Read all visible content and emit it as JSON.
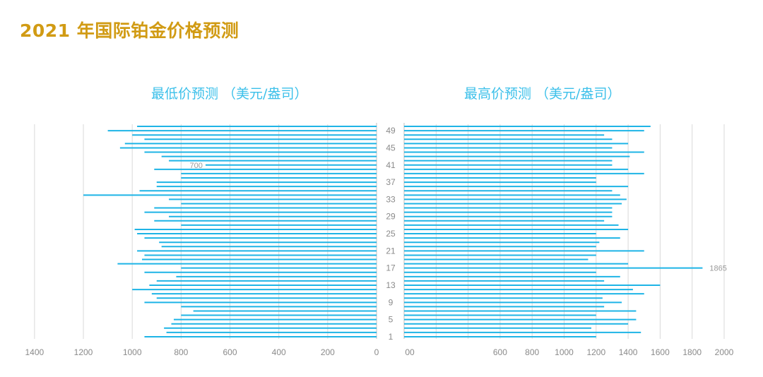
{
  "title": "2021 年国际铂金价格预测",
  "colors": {
    "title": "#d19b14",
    "subtitle": "#3cc0ea",
    "bar": "#1eb4e6",
    "grid": "#d9d9d9",
    "tick": "#8a8a8a"
  },
  "chart_data": [
    {
      "type": "bar",
      "orientation": "horizontal",
      "direction": "right-to-left",
      "title": "最低价预测 （美元/盎司）",
      "categories": [
        1,
        2,
        3,
        4,
        5,
        6,
        7,
        8,
        9,
        10,
        11,
        12,
        13,
        14,
        15,
        16,
        17,
        18,
        19,
        20,
        21,
        22,
        23,
        24,
        25,
        26,
        27,
        28,
        29,
        30,
        31,
        32,
        33,
        34,
        35,
        36,
        37,
        38,
        39,
        40,
        41,
        42,
        43,
        44,
        45,
        46,
        47,
        48,
        49,
        50
      ],
      "category_tick_labels": [
        "1",
        "5",
        "9",
        "13",
        "17",
        "21",
        "25",
        "29",
        "33",
        "37",
        "41",
        "45",
        "49"
      ],
      "values": [
        950,
        860,
        870,
        840,
        830,
        800,
        750,
        800,
        950,
        900,
        920,
        1000,
        930,
        900,
        820,
        950,
        800,
        1060,
        960,
        950,
        980,
        880,
        890,
        950,
        980,
        990,
        800,
        910,
        850,
        950,
        910,
        800,
        850,
        1200,
        970,
        900,
        900,
        800,
        800,
        910,
        700,
        850,
        880,
        950,
        1050,
        1030,
        950,
        1000,
        1100,
        980
      ],
      "annotations": [
        {
          "category": 41,
          "text": "700"
        }
      ],
      "xlim": [
        0,
        1400
      ],
      "xticks": [
        "1400",
        "1200",
        "1000",
        "800",
        "600",
        "400",
        "200",
        "0"
      ],
      "grid": true
    },
    {
      "type": "bar",
      "orientation": "horizontal",
      "direction": "left-to-right",
      "title": "最高价预测 （美元/盎司）",
      "categories": [
        1,
        2,
        3,
        4,
        5,
        6,
        7,
        8,
        9,
        10,
        11,
        12,
        13,
        14,
        15,
        16,
        17,
        18,
        19,
        20,
        21,
        22,
        23,
        24,
        25,
        26,
        27,
        28,
        29,
        30,
        31,
        32,
        33,
        34,
        35,
        36,
        37,
        38,
        39,
        40,
        41,
        42,
        43,
        44,
        45,
        46,
        47,
        48,
        49,
        50
      ],
      "category_tick_labels": [
        "1",
        "5",
        "9",
        "13",
        "17",
        "21",
        "25",
        "29",
        "33",
        "37",
        "41",
        "45",
        "49"
      ],
      "values": [
        1200,
        1480,
        1170,
        1400,
        1450,
        1200,
        1450,
        1250,
        1360,
        1240,
        1500,
        1430,
        1600,
        1250,
        1350,
        1200,
        1865,
        1400,
        1150,
        1200,
        1500,
        1200,
        1220,
        1350,
        1200,
        1400,
        1340,
        1250,
        1300,
        1300,
        1300,
        1360,
        1390,
        1350,
        1300,
        1400,
        1200,
        1200,
        1500,
        1400,
        1300,
        1300,
        1410,
        1500,
        1300,
        1400,
        1300,
        1250,
        1500,
        1540
      ],
      "annotations": [
        {
          "category": 17,
          "text": "1865"
        }
      ],
      "xlim": [
        0,
        2000
      ],
      "xticks": [
        "00",
        "600",
        "800",
        "1000",
        "1200",
        "1400",
        "1600",
        "1800",
        "2000"
      ],
      "grid": true
    }
  ]
}
